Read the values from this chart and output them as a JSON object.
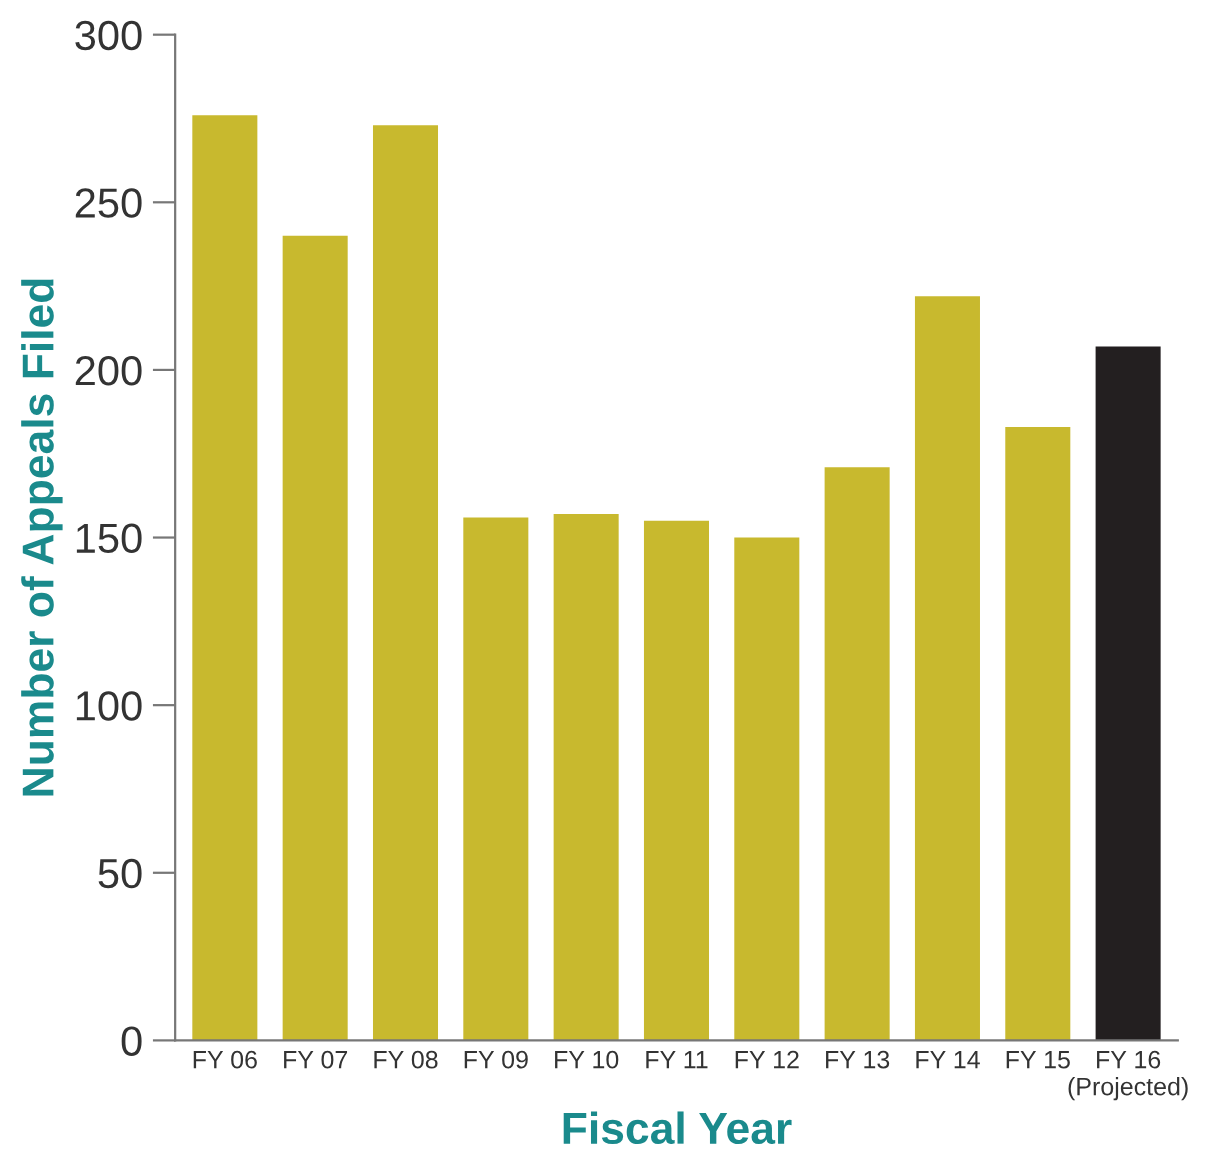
{
  "chart_data": {
    "type": "bar",
    "xlabel": "Fiscal Year",
    "ylabel": "Number of Appeals Filed",
    "categories": [
      "FY 06",
      "FY 07",
      "FY 08",
      "FY 09",
      "FY 10",
      "FY 11",
      "FY 12",
      "FY 13",
      "FY 14",
      "FY 15",
      "FY 16\n(Projected)"
    ],
    "values": [
      276,
      240,
      273,
      156,
      157,
      155,
      150,
      171,
      222,
      183,
      207
    ],
    "colors": [
      "#c8b92e",
      "#c8b92e",
      "#c8b92e",
      "#c8b92e",
      "#c8b92e",
      "#c8b92e",
      "#c8b92e",
      "#c8b92e",
      "#c8b92e",
      "#c8b92e",
      "#231f20"
    ],
    "ylim": [
      0,
      300
    ],
    "yticks": [
      0,
      50,
      100,
      150,
      200,
      250,
      300
    ],
    "grid": false,
    "legend": false
  }
}
